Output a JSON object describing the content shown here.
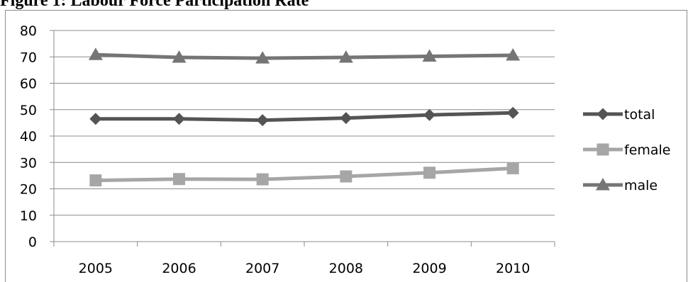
{
  "figure": {
    "title": "Figure 1: Labour Force Participation Rate"
  },
  "chart_data": {
    "type": "line",
    "x": [
      "2005",
      "2006",
      "2007",
      "2008",
      "2009",
      "2010"
    ],
    "ylim": [
      0,
      80
    ],
    "yticks": [
      0,
      10,
      20,
      30,
      40,
      50,
      60,
      70,
      80
    ],
    "grid": true,
    "legend_position": "right",
    "series": [
      {
        "name": "total",
        "values": [
          46.5,
          46.5,
          46.0,
          46.8,
          48.0,
          48.8
        ],
        "color": "#545454",
        "marker": "diamond"
      },
      {
        "name": "female",
        "values": [
          23.2,
          23.7,
          23.6,
          24.7,
          26.1,
          27.8
        ],
        "color": "#a6a6a6",
        "marker": "square"
      },
      {
        "name": "male",
        "values": [
          70.8,
          69.8,
          69.5,
          69.8,
          70.2,
          70.6
        ],
        "color": "#757575",
        "marker": "triangle"
      }
    ]
  }
}
